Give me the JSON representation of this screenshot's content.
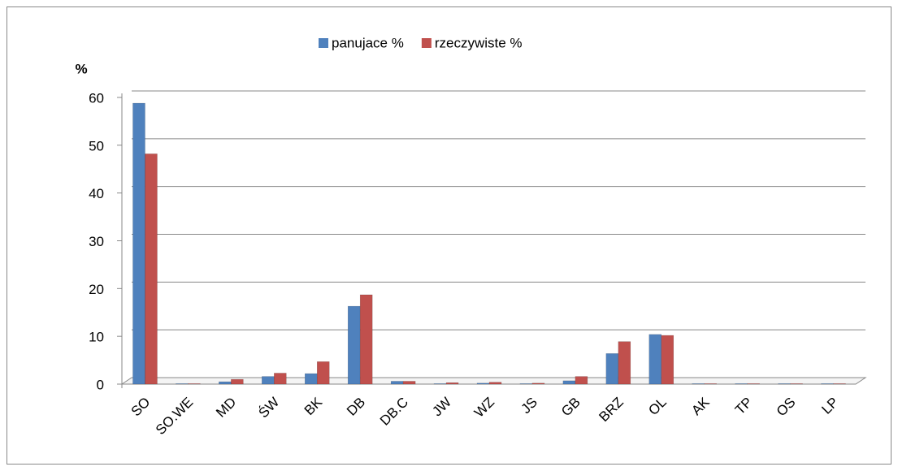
{
  "chart_data": {
    "type": "bar",
    "y_axis_label": "%",
    "categories": [
      "SO",
      "SO.WE",
      "MD",
      "ŚW",
      "BK",
      "DB",
      "DB.C",
      "JW",
      "WZ",
      "JS",
      "GB",
      "BRZ",
      "OL",
      "AK",
      "TP",
      "OS",
      "LP"
    ],
    "series": [
      {
        "name": "panujace %",
        "color": "#4f81bd",
        "values": [
          58.8,
          0.1,
          0.5,
          1.6,
          2.2,
          16.3,
          0.6,
          0.1,
          0.2,
          0.1,
          0.7,
          6.4,
          10.4,
          0.1,
          0.1,
          0.1,
          0.1
        ]
      },
      {
        "name": "rzeczywiste %",
        "color": "#c0504d",
        "values": [
          48.2,
          0.1,
          1.0,
          2.3,
          4.7,
          18.7,
          0.6,
          0.3,
          0.4,
          0.2,
          1.6,
          8.9,
          10.2,
          0.1,
          0.1,
          0.1,
          0.1
        ]
      }
    ],
    "ylim": [
      0,
      60
    ],
    "yticks": [
      0,
      10,
      20,
      30,
      40,
      50,
      60
    ],
    "grid": true,
    "legend": "top"
  }
}
